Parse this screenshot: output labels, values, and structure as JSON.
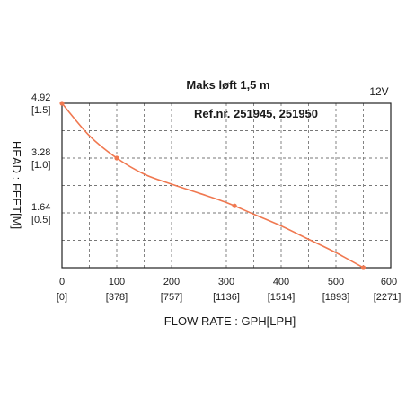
{
  "chart_data": {
    "type": "line",
    "title": "Maks løft 1,5 m",
    "subtitle": "Ref.nr. 251945, 251950",
    "voltage_label": "12V",
    "xlabel": "FLOW RATE : GPH[LPH]",
    "ylabel": "HEAD : FEET[M]",
    "xlim": [
      0,
      600
    ],
    "ylim": [
      0,
      4.92
    ],
    "x_ticks": [
      {
        "value": 0,
        "label": "0",
        "sub": "[0]"
      },
      {
        "value": 100,
        "label": "100",
        "sub": "[378]"
      },
      {
        "value": 200,
        "label": "200",
        "sub": "[757]"
      },
      {
        "value": 300,
        "label": "300",
        "sub": "[1136]"
      },
      {
        "value": 400,
        "label": "400",
        "sub": "[1514]"
      },
      {
        "value": 500,
        "label": "500",
        "sub": "[1893]"
      },
      {
        "value": 600,
        "label": "600",
        "sub": "[2271]"
      }
    ],
    "y_ticks": [
      {
        "value": 4.92,
        "label": "4.92",
        "sub": "[1.5]"
      },
      {
        "value": 3.28,
        "label": "3.28",
        "sub": "[1.0]"
      },
      {
        "value": 1.64,
        "label": "1.64",
        "sub": "[0.5]"
      }
    ],
    "grid_x": [
      50,
      100,
      150,
      200,
      250,
      300,
      350,
      400,
      450,
      500,
      550
    ],
    "grid_y": [
      0.82,
      1.64,
      2.46,
      3.28,
      4.1
    ],
    "grid": true,
    "legend": "none",
    "series": [
      {
        "color": "#f07850",
        "x": [
          0,
          50,
          100,
          150,
          200,
          250,
          300,
          350,
          400,
          450,
          500,
          550
        ],
        "y": [
          4.92,
          3.95,
          3.28,
          2.8,
          2.5,
          2.23,
          1.95,
          1.6,
          1.25,
          0.85,
          0.45,
          0.0
        ],
        "markers": [
          {
            "x": 0,
            "y": 4.92
          },
          {
            "x": 100,
            "y": 3.28
          },
          {
            "x": 315,
            "y": 1.85
          },
          {
            "x": 550,
            "y": 0.0
          }
        ]
      }
    ]
  }
}
